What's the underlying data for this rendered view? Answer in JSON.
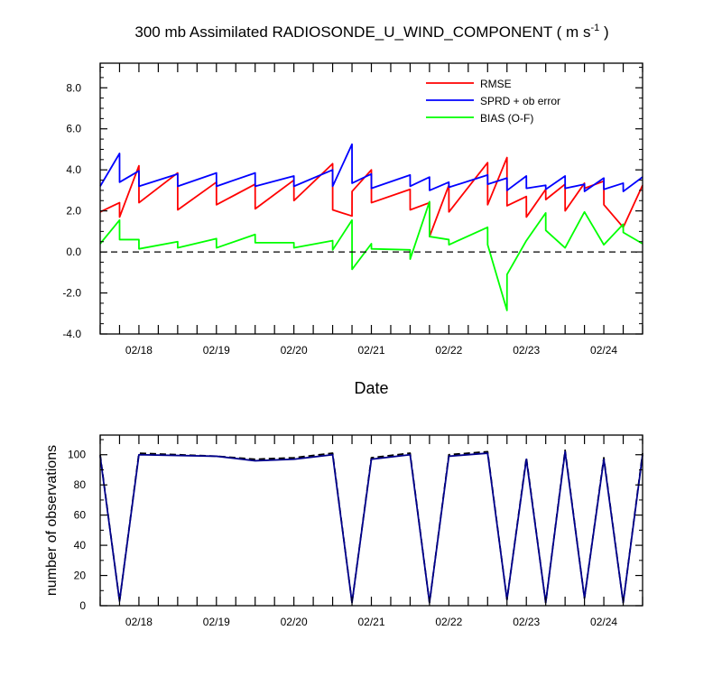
{
  "title": {
    "main": "300 mb Assimilated RADIOSONDE_U_WIND_COMPONENT ( m s",
    "sup": "-1",
    "tail": " )"
  },
  "chart_data": [
    {
      "type": "line",
      "xlabel": "Date",
      "ylabel": "",
      "xlim": [
        "2024-02-17T12:00",
        "2024-02-24T12:00"
      ],
      "ylim": [
        -4.0,
        9.2
      ],
      "yticks": [
        -4.0,
        -2.0,
        0.0,
        2.0,
        4.0,
        6.0,
        8.0
      ],
      "yticklabels": [
        "-4.0",
        "-2.0",
        "0.0",
        "2.0",
        "4.0",
        "6.0",
        "8.0"
      ],
      "xticks": [
        "2024-02-18T00:00",
        "2024-02-19T00:00",
        "2024-02-20T00:00",
        "2024-02-21T00:00",
        "2024-02-22T00:00",
        "2024-02-23T00:00",
        "2024-02-24T00:00"
      ],
      "xticklabels": [
        "02/18",
        "02/19",
        "02/20",
        "02/21",
        "02/22",
        "02/23",
        "02/24"
      ],
      "grid": false,
      "legend_position": "top-right",
      "reference_line": {
        "y": 0.0,
        "style": "dashed"
      },
      "series": [
        {
          "name": "RMSE",
          "color": "#ff0000",
          "points": [
            [
              "2024-02-17T12:00",
              1.95
            ],
            [
              "2024-02-17T18:00",
              2.4
            ],
            [
              "2024-02-17T18:01",
              1.7
            ],
            [
              "2024-02-18T00:00",
              4.2
            ],
            [
              "2024-02-18T00:01",
              2.4
            ],
            [
              "2024-02-18T12:00",
              3.85
            ],
            [
              "2024-02-18T12:01",
              2.05
            ],
            [
              "2024-02-19T00:00",
              3.4
            ],
            [
              "2024-02-19T00:01",
              2.3
            ],
            [
              "2024-02-19T12:00",
              3.3
            ],
            [
              "2024-02-19T12:01",
              2.1
            ],
            [
              "2024-02-20T00:00",
              3.5
            ],
            [
              "2024-02-20T00:01",
              2.5
            ],
            [
              "2024-02-20T12:00",
              4.3
            ],
            [
              "2024-02-20T12:01",
              2.05
            ],
            [
              "2024-02-20T18:00",
              1.75
            ],
            [
              "2024-02-20T18:01",
              2.95
            ],
            [
              "2024-02-21T00:00",
              4.0
            ],
            [
              "2024-02-21T00:01",
              2.4
            ],
            [
              "2024-02-21T12:00",
              3.05
            ],
            [
              "2024-02-21T12:01",
              2.05
            ],
            [
              "2024-02-21T18:00",
              2.4
            ],
            [
              "2024-02-21T18:01",
              0.75
            ],
            [
              "2024-02-22T00:00",
              3.25
            ],
            [
              "2024-02-22T00:01",
              1.95
            ],
            [
              "2024-02-22T12:00",
              4.35
            ],
            [
              "2024-02-22T12:01",
              2.3
            ],
            [
              "2024-02-22T18:00",
              4.6
            ],
            [
              "2024-02-22T18:01",
              2.25
            ],
            [
              "2024-02-23T00:00",
              2.7
            ],
            [
              "2024-02-23T00:01",
              1.7
            ],
            [
              "2024-02-23T06:00",
              3.05
            ],
            [
              "2024-02-23T06:01",
              2.55
            ],
            [
              "2024-02-23T12:00",
              3.3
            ],
            [
              "2024-02-23T12:01",
              2.0
            ],
            [
              "2024-02-23T18:00",
              3.35
            ],
            [
              "2024-02-23T18:01",
              3.1
            ],
            [
              "2024-02-24T00:00",
              3.45
            ],
            [
              "2024-02-24T00:01",
              2.3
            ],
            [
              "2024-02-24T06:00",
              1.2
            ],
            [
              "2024-02-24T12:00",
              3.25
            ]
          ]
        },
        {
          "name": "SPRD + ob error",
          "color": "#0000ff",
          "points": [
            [
              "2024-02-17T12:00",
              3.2
            ],
            [
              "2024-02-17T18:00",
              4.8
            ],
            [
              "2024-02-17T18:01",
              3.4
            ],
            [
              "2024-02-18T00:00",
              3.95
            ],
            [
              "2024-02-18T00:01",
              3.2
            ],
            [
              "2024-02-18T12:00",
              3.8
            ],
            [
              "2024-02-18T12:01",
              3.2
            ],
            [
              "2024-02-19T00:00",
              3.85
            ],
            [
              "2024-02-19T00:01",
              3.2
            ],
            [
              "2024-02-19T12:00",
              3.85
            ],
            [
              "2024-02-19T12:01",
              3.2
            ],
            [
              "2024-02-20T00:00",
              3.7
            ],
            [
              "2024-02-20T00:01",
              3.2
            ],
            [
              "2024-02-20T12:00",
              4.0
            ],
            [
              "2024-02-20T12:01",
              3.2
            ],
            [
              "2024-02-20T18:00",
              5.25
            ],
            [
              "2024-02-20T18:01",
              3.35
            ],
            [
              "2024-02-21T00:00",
              3.8
            ],
            [
              "2024-02-21T00:01",
              3.1
            ],
            [
              "2024-02-21T12:00",
              3.75
            ],
            [
              "2024-02-21T12:01",
              3.2
            ],
            [
              "2024-02-21T18:00",
              3.65
            ],
            [
              "2024-02-21T18:01",
              3.0
            ],
            [
              "2024-02-22T00:00",
              3.4
            ],
            [
              "2024-02-22T00:01",
              3.15
            ],
            [
              "2024-02-22T12:00",
              3.75
            ],
            [
              "2024-02-22T12:01",
              3.3
            ],
            [
              "2024-02-22T18:00",
              3.6
            ],
            [
              "2024-02-22T18:01",
              3.0
            ],
            [
              "2024-02-23T00:00",
              3.7
            ],
            [
              "2024-02-23T00:01",
              3.1
            ],
            [
              "2024-02-23T06:00",
              3.25
            ],
            [
              "2024-02-23T06:01",
              3.05
            ],
            [
              "2024-02-23T12:00",
              3.7
            ],
            [
              "2024-02-23T12:01",
              3.1
            ],
            [
              "2024-02-23T18:00",
              3.3
            ],
            [
              "2024-02-23T18:01",
              2.95
            ],
            [
              "2024-02-24T00:00",
              3.6
            ],
            [
              "2024-02-24T00:01",
              3.05
            ],
            [
              "2024-02-24T06:00",
              3.35
            ],
            [
              "2024-02-24T06:01",
              2.95
            ],
            [
              "2024-02-24T12:00",
              3.65
            ]
          ]
        },
        {
          "name": "BIAS (O-F)",
          "color": "#00ff00",
          "points": [
            [
              "2024-02-17T12:00",
              0.4
            ],
            [
              "2024-02-17T18:00",
              1.55
            ],
            [
              "2024-02-17T18:01",
              0.6
            ],
            [
              "2024-02-18T00:00",
              0.6
            ],
            [
              "2024-02-18T00:01",
              0.15
            ],
            [
              "2024-02-18T12:00",
              0.5
            ],
            [
              "2024-02-18T12:01",
              0.2
            ],
            [
              "2024-02-19T00:00",
              0.65
            ],
            [
              "2024-02-19T00:01",
              0.2
            ],
            [
              "2024-02-19T12:00",
              0.85
            ],
            [
              "2024-02-19T12:01",
              0.45
            ],
            [
              "2024-02-20T00:00",
              0.45
            ],
            [
              "2024-02-20T00:01",
              0.2
            ],
            [
              "2024-02-20T12:00",
              0.55
            ],
            [
              "2024-02-20T12:01",
              0.1
            ],
            [
              "2024-02-20T18:00",
              1.55
            ],
            [
              "2024-02-20T18:01",
              -0.85
            ],
            [
              "2024-02-21T00:00",
              0.4
            ],
            [
              "2024-02-21T00:01",
              0.15
            ],
            [
              "2024-02-21T12:00",
              0.1
            ],
            [
              "2024-02-21T12:01",
              -0.35
            ],
            [
              "2024-02-21T18:00",
              2.45
            ],
            [
              "2024-02-21T18:01",
              0.75
            ],
            [
              "2024-02-22T00:00",
              0.6
            ],
            [
              "2024-02-22T00:01",
              0.35
            ],
            [
              "2024-02-22T12:00",
              1.2
            ],
            [
              "2024-02-22T12:01",
              0.35
            ],
            [
              "2024-02-22T18:00",
              -2.85
            ],
            [
              "2024-02-22T18:01",
              -1.1
            ],
            [
              "2024-02-23T00:00",
              0.55
            ],
            [
              "2024-02-23T06:00",
              1.9
            ],
            [
              "2024-02-23T06:01",
              1.05
            ],
            [
              "2024-02-23T12:00",
              0.2
            ],
            [
              "2024-02-23T18:00",
              1.95
            ],
            [
              "2024-02-24T00:00",
              0.35
            ],
            [
              "2024-02-24T06:00",
              1.35
            ],
            [
              "2024-02-24T06:01",
              0.95
            ],
            [
              "2024-02-24T12:00",
              0.4
            ]
          ]
        }
      ]
    },
    {
      "type": "line",
      "xlabel": "",
      "ylabel": "number of observations",
      "xlim": [
        "2024-02-17T12:00",
        "2024-02-24T12:00"
      ],
      "ylim": [
        0,
        113
      ],
      "yticks": [
        0,
        20,
        40,
        60,
        80,
        100
      ],
      "yticklabels": [
        "0",
        "20",
        "40",
        "60",
        "80",
        "100"
      ],
      "xticks": [
        "2024-02-18T00:00",
        "2024-02-19T00:00",
        "2024-02-20T00:00",
        "2024-02-21T00:00",
        "2024-02-22T00:00",
        "2024-02-23T00:00",
        "2024-02-24T00:00"
      ],
      "xticklabels": [
        "02/18",
        "02/19",
        "02/20",
        "02/21",
        "02/22",
        "02/23",
        "02/24"
      ],
      "grid": false,
      "series": [
        {
          "color": "#000000",
          "style": "dashed",
          "points": [
            [
              "2024-02-17T12:00",
              100
            ],
            [
              "2024-02-17T18:00",
              3
            ],
            [
              "2024-02-18T00:00",
              101
            ],
            [
              "2024-02-19T00:00",
              99
            ],
            [
              "2024-02-19T12:00",
              97
            ],
            [
              "2024-02-20T00:00",
              98
            ],
            [
              "2024-02-20T12:00",
              101
            ],
            [
              "2024-02-20T18:00",
              2
            ],
            [
              "2024-02-21T00:00",
              98
            ],
            [
              "2024-02-21T12:00",
              101
            ],
            [
              "2024-02-21T18:00",
              2
            ],
            [
              "2024-02-22T00:00",
              100
            ],
            [
              "2024-02-22T12:00",
              102
            ],
            [
              "2024-02-22T18:00",
              4
            ],
            [
              "2024-02-23T00:00",
              98
            ],
            [
              "2024-02-23T06:00",
              2
            ],
            [
              "2024-02-23T12:00",
              103
            ],
            [
              "2024-02-23T18:00",
              5
            ],
            [
              "2024-02-24T00:00",
              98
            ],
            [
              "2024-02-24T06:00",
              2
            ],
            [
              "2024-02-24T12:00",
              101
            ]
          ]
        },
        {
          "color": "#00008b",
          "style": "solid",
          "points": [
            [
              "2024-02-17T12:00",
              99
            ],
            [
              "2024-02-17T18:00",
              3
            ],
            [
              "2024-02-18T00:00",
              100
            ],
            [
              "2024-02-19T00:00",
              99
            ],
            [
              "2024-02-19T12:00",
              96
            ],
            [
              "2024-02-20T00:00",
              97
            ],
            [
              "2024-02-20T12:00",
              100
            ],
            [
              "2024-02-20T18:00",
              2
            ],
            [
              "2024-02-21T00:00",
              97
            ],
            [
              "2024-02-21T12:00",
              100
            ],
            [
              "2024-02-21T18:00",
              2
            ],
            [
              "2024-02-22T00:00",
              99
            ],
            [
              "2024-02-22T12:00",
              101
            ],
            [
              "2024-02-22T18:00",
              4
            ],
            [
              "2024-02-23T00:00",
              97
            ],
            [
              "2024-02-23T06:00",
              2
            ],
            [
              "2024-02-23T12:00",
              102
            ],
            [
              "2024-02-23T18:00",
              5
            ],
            [
              "2024-02-24T00:00",
              97
            ],
            [
              "2024-02-24T06:00",
              2
            ],
            [
              "2024-02-24T12:00",
              100
            ]
          ]
        }
      ]
    }
  ]
}
